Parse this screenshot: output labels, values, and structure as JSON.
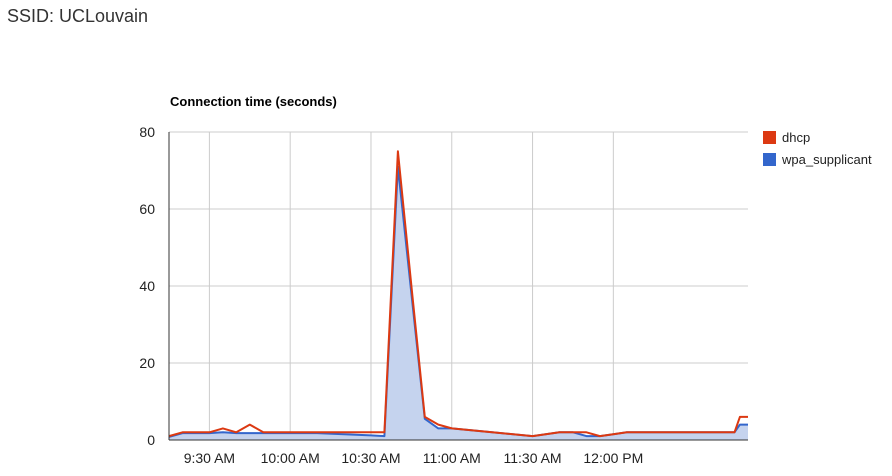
{
  "page": {
    "title": "SSID: UCLouvain"
  },
  "chart_data": {
    "type": "line",
    "title": "Connection time (seconds)",
    "xlabel": "",
    "ylabel": "",
    "ylim": [
      0,
      80
    ],
    "yticks": [
      0,
      20,
      40,
      60,
      80
    ],
    "xlim": [
      "9:15",
      "12:50"
    ],
    "xticks": [
      "9:30 AM",
      "10:00 AM",
      "10:30 AM",
      "11:00 AM",
      "11:30 AM",
      "12:00 PM"
    ],
    "grid": true,
    "legend_position": "right",
    "x": [
      "9:15",
      "9:20",
      "9:25",
      "9:30",
      "9:35",
      "9:40",
      "9:45",
      "9:50",
      "10:10",
      "10:30",
      "10:35",
      "10:40",
      "10:45",
      "10:50",
      "10:55",
      "11:00",
      "11:15",
      "11:30",
      "11:40",
      "11:45",
      "11:50",
      "11:55",
      "12:00",
      "12:05",
      "12:10",
      "12:15",
      "12:20",
      "12:25",
      "12:30",
      "12:35",
      "12:45",
      "12:47",
      "12:50"
    ],
    "series": [
      {
        "name": "dhcp",
        "color": "#dc3912",
        "values": [
          1,
          2,
          2,
          2,
          3,
          2,
          4,
          2,
          2,
          2,
          2,
          75,
          40,
          6,
          4,
          3,
          2,
          1,
          2,
          2,
          2,
          1,
          1.5,
          2,
          2,
          2,
          2,
          2,
          2,
          2,
          2,
          6,
          6
        ]
      },
      {
        "name": "wpa_supplicant",
        "color": "#3366cc",
        "values": [
          0.8,
          1.8,
          1.8,
          1.8,
          2,
          1.8,
          1.8,
          1.8,
          1.8,
          1.2,
          1,
          71,
          38,
          5.5,
          3,
          3,
          2,
          1,
          2,
          2,
          1,
          1,
          1.5,
          2,
          2,
          2,
          2,
          2,
          2,
          2,
          2,
          4,
          4
        ]
      }
    ]
  }
}
